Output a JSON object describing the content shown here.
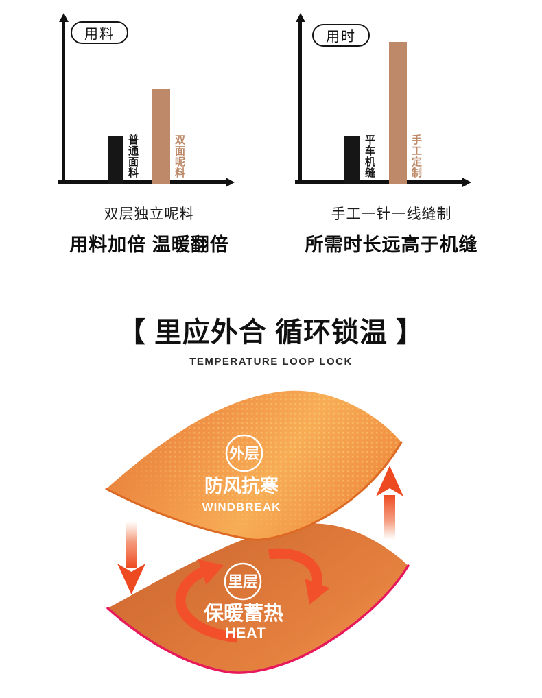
{
  "chart_data": [
    {
      "type": "bar",
      "title": "用料",
      "categories": [
        "普通面料",
        "双面呢料"
      ],
      "values": [
        1,
        2
      ],
      "colors": [
        "#161616",
        "#bd8968"
      ],
      "xlabel": "",
      "ylabel": "",
      "axis_ticks": "none (conceptual comparison chart, no numeric scale)",
      "caption_line1": "双层独立呢料",
      "caption_line2": "用料加倍 温暖翻倍"
    },
    {
      "type": "bar",
      "title": "用时",
      "categories": [
        "平车机缝",
        "手工定制"
      ],
      "values": [
        1,
        3
      ],
      "colors": [
        "#161616",
        "#bd8968"
      ],
      "xlabel": "",
      "ylabel": "",
      "axis_ticks": "none (conceptual comparison chart, no numeric scale)",
      "caption_line1": "手工一针一线缝制",
      "caption_line2": "所需时长远高于机缝"
    }
  ],
  "section": {
    "title": "【 里应外合 循环锁温 】",
    "subtitle": "TEMPERATURE LOOP LOCK"
  },
  "diagram": {
    "outer_layer": {
      "badge": "外层",
      "title": "防风抗寒",
      "subtitle": "WINDBREAK"
    },
    "inner_layer": {
      "badge": "里层",
      "title": "保暖蓄热",
      "subtitle": "HEAT"
    }
  },
  "colors": {
    "bar_black": "#161616",
    "bar_tan": "#bd8968",
    "axis_black": "#111111",
    "fabric_orange_light": "#f5a851",
    "fabric_orange_deep": "#d8742f",
    "fabric_edge_crimson": "#e7195a",
    "arrow_red": "#ee4a22",
    "circulation_arrow_red": "#f1502a",
    "badge_white": "#ffffff"
  }
}
